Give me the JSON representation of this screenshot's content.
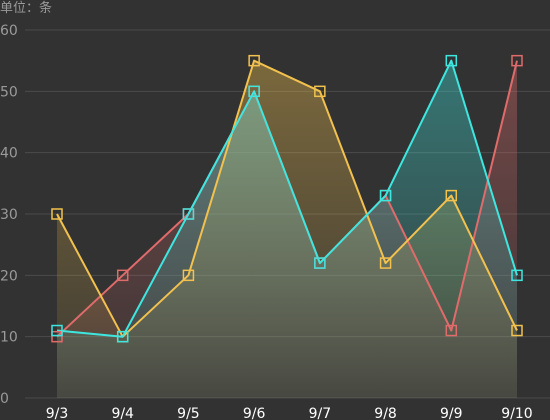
{
  "colors": {
    "background": "#323232",
    "grid": "#4b4b4b",
    "axis_text": "#9a9a9a",
    "x_tick_text": "#ffffff"
  },
  "chart_data": {
    "type": "area",
    "unit_label": "单位：条",
    "categories": [
      "9/3",
      "9/4",
      "9/5",
      "9/6",
      "9/7",
      "9/8",
      "9/9",
      "9/10"
    ],
    "ylim": [
      0,
      60
    ],
    "yticks": [
      0,
      10,
      20,
      30,
      40,
      50,
      60
    ],
    "grid": true,
    "marker": "hollow-square",
    "series": [
      {
        "color": "#e06b6b",
        "values": [
          10,
          20,
          30,
          50,
          22,
          33,
          11,
          55
        ]
      },
      {
        "color": "#f2c14e",
        "values": [
          30,
          10,
          20,
          55,
          50,
          22,
          33,
          11
        ]
      },
      {
        "color": "#3ee6e0",
        "values": [
          11,
          10,
          30,
          50,
          22,
          33,
          55,
          20
        ]
      }
    ]
  }
}
